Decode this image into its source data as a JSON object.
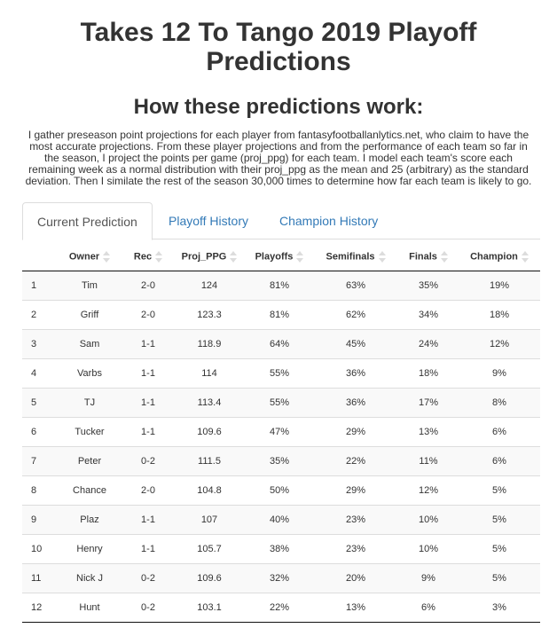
{
  "title_line1": "Takes 12 To Tango 2019 Playoff",
  "title_line2": "Predictions",
  "section_title": "How these predictions work:",
  "description": "I gather preseason point projections for each player from fantasyfootballanlytics.net, who claim to have the most accurate projections. From these player projections and from the performance of each team so far in the season, I project the points per game (proj_ppg) for each team. I model each team's score each remaining week as a normal distribution with their proj_ppg as the mean and 25 (arbitrary) as the standard deviation. Then I similate the rest of the season 30,000 times to determine how far each team is likely to go.",
  "tabs": [
    {
      "label": "Current Prediction",
      "active": true
    },
    {
      "label": "Playoff History",
      "active": false
    },
    {
      "label": "Champion History",
      "active": false
    }
  ],
  "table": {
    "columns": [
      "",
      "Owner",
      "Rec",
      "Proj_PPG",
      "Playoffs",
      "Semifinals",
      "Finals",
      "Champion"
    ],
    "rows": [
      [
        "1",
        "Tim",
        "2-0",
        "124",
        "81%",
        "63%",
        "35%",
        "19%"
      ],
      [
        "2",
        "Griff",
        "2-0",
        "123.3",
        "81%",
        "62%",
        "34%",
        "18%"
      ],
      [
        "3",
        "Sam",
        "1-1",
        "118.9",
        "64%",
        "45%",
        "24%",
        "12%"
      ],
      [
        "4",
        "Varbs",
        "1-1",
        "114",
        "55%",
        "36%",
        "18%",
        "9%"
      ],
      [
        "5",
        "TJ",
        "1-1",
        "113.4",
        "55%",
        "36%",
        "17%",
        "8%"
      ],
      [
        "6",
        "Tucker",
        "1-1",
        "109.6",
        "47%",
        "29%",
        "13%",
        "6%"
      ],
      [
        "7",
        "Peter",
        "0-2",
        "111.5",
        "35%",
        "22%",
        "11%",
        "6%"
      ],
      [
        "8",
        "Chance",
        "2-0",
        "104.8",
        "50%",
        "29%",
        "12%",
        "5%"
      ],
      [
        "9",
        "Plaz",
        "1-1",
        "107",
        "40%",
        "23%",
        "10%",
        "5%"
      ],
      [
        "10",
        "Henry",
        "1-1",
        "105.7",
        "38%",
        "23%",
        "10%",
        "5%"
      ],
      [
        "11",
        "Nick J",
        "0-2",
        "109.6",
        "32%",
        "20%",
        "9%",
        "5%"
      ],
      [
        "12",
        "Hunt",
        "0-2",
        "103.1",
        "22%",
        "13%",
        "6%",
        "3%"
      ]
    ]
  },
  "colors": {
    "link": "#337ab7",
    "text": "#333333",
    "stripe": "#f9f9f9",
    "border": "#dddddd"
  }
}
